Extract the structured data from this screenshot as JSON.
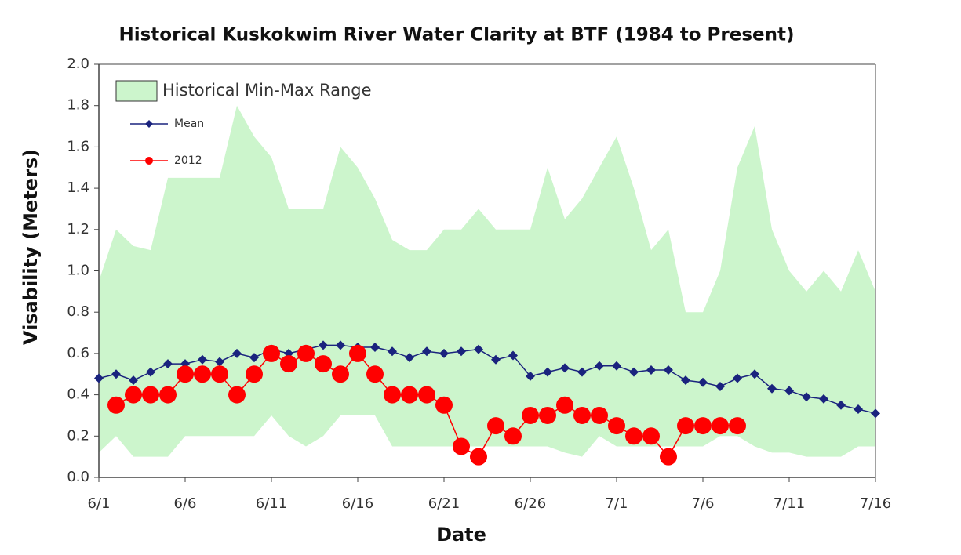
{
  "chart_data": {
    "type": "line",
    "title": "Historical Kuskokwim River Water Clarity at BTF (1984 to Present)",
    "x_label": "Date",
    "y_label": "Visability (Meters)",
    "categories": [
      "6/1",
      null,
      null,
      null,
      null,
      "6/6",
      null,
      null,
      null,
      null,
      "6/11",
      null,
      null,
      null,
      null,
      "6/16",
      null,
      null,
      null,
      null,
      "6/21",
      null,
      null,
      null,
      null,
      "6/26",
      null,
      null,
      null,
      null,
      "7/1",
      null,
      null,
      null,
      null,
      "7/6",
      null,
      null,
      null,
      null,
      "7/11",
      null,
      null,
      null,
      null,
      "7/16"
    ],
    "ylim": [
      0,
      2
    ],
    "yticks": [
      {
        "value": 0,
        "label": "0.0"
      },
      {
        "value": 0.2,
        "label": "0.2"
      },
      {
        "value": 0.4,
        "label": "0.4"
      },
      {
        "value": 0.6,
        "label": "0.6"
      },
      {
        "value": 0.8,
        "label": "0.8"
      },
      {
        "value": 1,
        "label": "1.0"
      },
      {
        "value": 1.2,
        "label": "1.2"
      },
      {
        "value": 1.4,
        "label": "1.4"
      },
      {
        "value": 1.6,
        "label": "1.6"
      },
      {
        "value": 1.8,
        "label": "1.8"
      },
      {
        "value": 2,
        "label": "2.0"
      }
    ],
    "legend": "upper left",
    "band": {
      "name": "Historical Min-Max Range",
      "color": "#ccf5cc",
      "max": [
        0.95,
        1.2,
        1.12,
        1.1,
        1.45,
        1.45,
        1.45,
        1.45,
        1.8,
        1.65,
        1.55,
        1.3,
        1.3,
        1.3,
        1.6,
        1.5,
        1.35,
        1.15,
        1.1,
        1.1,
        1.2,
        1.2,
        1.3,
        1.2,
        1.2,
        1.2,
        1.5,
        1.25,
        1.35,
        1.5,
        1.65,
        1.4,
        1.1,
        1.2,
        0.8,
        0.8,
        1.0,
        1.5,
        1.7,
        1.2,
        1.0,
        0.9,
        1.0,
        0.9,
        1.1,
        0.9
      ],
      "min": [
        0.12,
        0.2,
        0.1,
        0.1,
        0.1,
        0.2,
        0.2,
        0.2,
        0.2,
        0.2,
        0.3,
        0.2,
        0.15,
        0.2,
        0.3,
        0.3,
        0.3,
        0.15,
        0.15,
        0.15,
        0.15,
        0.15,
        0.15,
        0.15,
        0.15,
        0.15,
        0.15,
        0.12,
        0.1,
        0.2,
        0.15,
        0.15,
        0.15,
        0.15,
        0.15,
        0.15,
        0.2,
        0.2,
        0.15,
        0.12,
        0.12,
        0.1,
        0.1,
        0.1,
        0.15,
        0.15
      ]
    },
    "series": [
      {
        "name": "Mean",
        "color": "#1a237e",
        "marker": "diamond",
        "values": [
          0.48,
          0.5,
          0.47,
          0.51,
          0.55,
          0.55,
          0.57,
          0.56,
          0.6,
          0.58,
          0.62,
          0.6,
          0.62,
          0.64,
          0.64,
          0.63,
          0.63,
          0.61,
          0.58,
          0.61,
          0.6,
          0.61,
          0.62,
          0.57,
          0.59,
          0.49,
          0.51,
          0.53,
          0.51,
          0.54,
          0.54,
          0.51,
          0.52,
          0.52,
          0.47,
          0.46,
          0.44,
          0.48,
          0.5,
          0.43,
          0.42,
          0.39,
          0.38,
          0.35,
          0.33,
          0.31
        ]
      },
      {
        "name": "2012",
        "color": "#ff0000",
        "marker": "circle",
        "values": [
          null,
          0.35,
          0.4,
          0.4,
          0.4,
          0.5,
          0.5,
          0.5,
          0.4,
          0.5,
          0.6,
          0.55,
          0.6,
          0.55,
          0.5,
          0.6,
          0.5,
          0.4,
          0.4,
          0.4,
          0.35,
          0.15,
          0.1,
          0.25,
          0.2,
          0.3,
          0.3,
          0.35,
          0.3,
          0.3,
          0.25,
          0.2,
          0.2,
          0.1,
          0.25,
          0.25,
          0.25,
          0.25,
          null,
          null,
          null,
          null,
          null,
          null,
          null,
          null
        ]
      }
    ]
  }
}
